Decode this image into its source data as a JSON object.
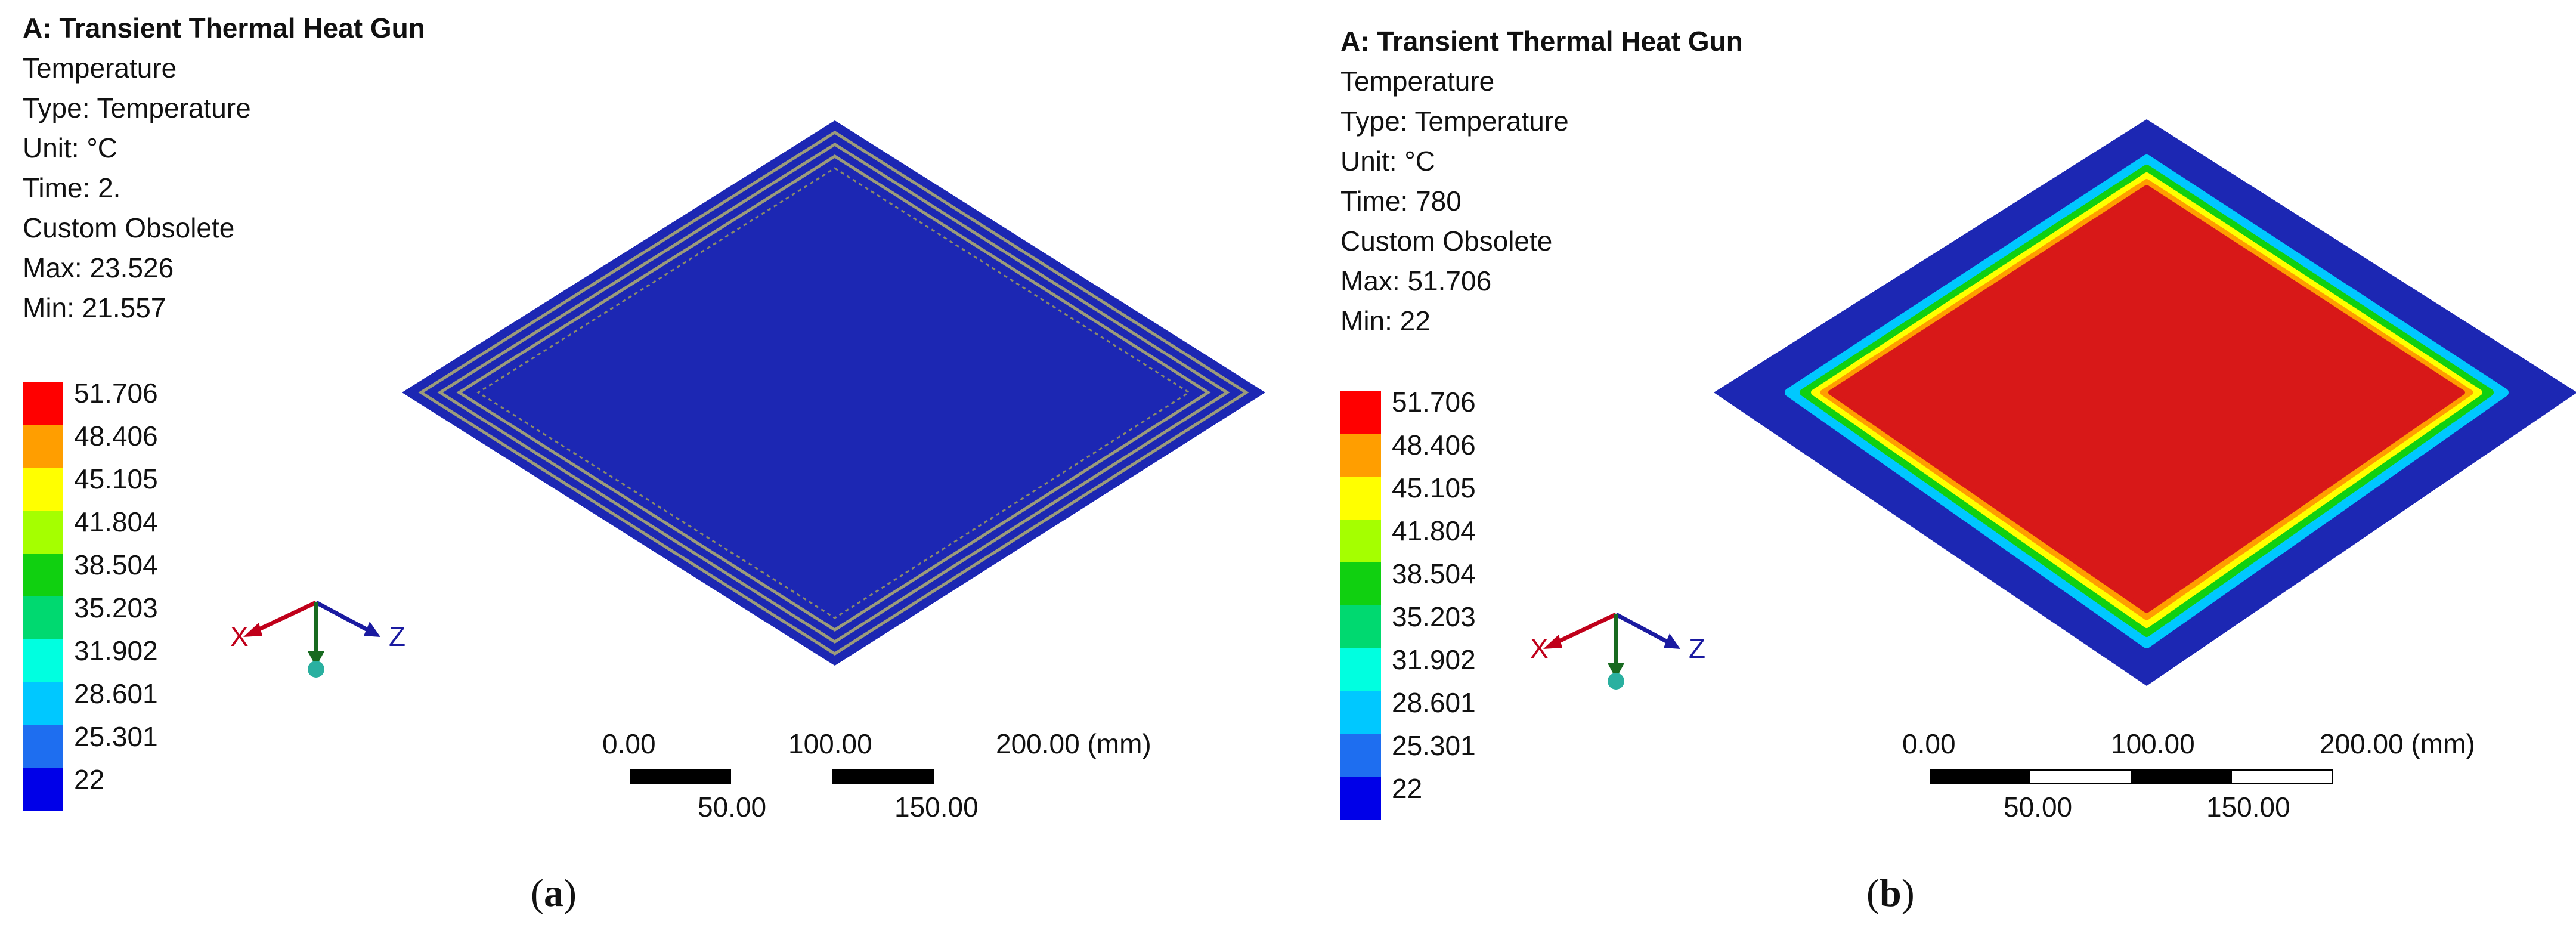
{
  "panels": [
    {
      "id": "a",
      "title": "A: Transient Thermal Heat Gun",
      "lines": [
        "Temperature",
        "Type: Temperature",
        "Unit: °C",
        "Time: 2.",
        "Custom Obsolete",
        "Max: 23.526",
        "Min: 21.557"
      ],
      "legend": [
        "51.706",
        "48.406",
        "45.105",
        "41.804",
        "38.504",
        "35.203",
        "31.902",
        "28.601",
        "25.301",
        "22"
      ],
      "axes": {
        "x": "X",
        "z": "Z"
      },
      "scale": {
        "top": [
          "0.00",
          "100.00",
          "200.00 (mm)"
        ],
        "bottom": [
          "50.00",
          "150.00"
        ]
      },
      "subcaption": {
        "open": "(",
        "letter": "a",
        "close": ")"
      }
    },
    {
      "id": "b",
      "title": "A: Transient Thermal Heat Gun",
      "lines": [
        "Temperature",
        "Type: Temperature",
        "Unit: °C",
        "Time: 780",
        "Custom Obsolete",
        "Max: 51.706",
        "Min: 22"
      ],
      "legend": [
        "51.706",
        "48.406",
        "45.105",
        "41.804",
        "38.504",
        "35.203",
        "31.902",
        "28.601",
        "25.301",
        "22"
      ],
      "axes": {
        "x": "X",
        "z": "Z"
      },
      "scale": {
        "top": [
          "0.00",
          "100.00",
          "200.00 (mm)"
        ],
        "bottom": [
          "50.00",
          "150.00"
        ]
      },
      "subcaption": {
        "open": "(",
        "letter": "b",
        "close": ")"
      }
    }
  ],
  "colors": {
    "legend": [
      "#ff0000",
      "#ff9e00",
      "#ffff00",
      "#a5ff00",
      "#10d010",
      "#00d970",
      "#00ffe0",
      "#00c8ff",
      "#1e6ef0",
      "#0000e8"
    ],
    "plate_cold": "#1c27b3",
    "trace": "#9c9c7a",
    "plate_hot": "#d81818"
  }
}
